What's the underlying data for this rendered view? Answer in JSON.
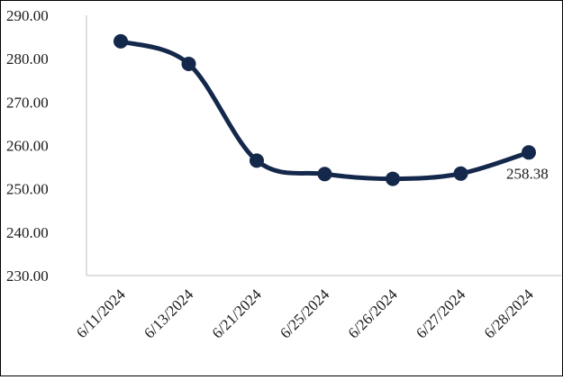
{
  "chart_data": {
    "type": "line",
    "title": "",
    "xlabel": "",
    "ylabel": "",
    "categories": [
      "6/11/2024",
      "6/13/2024",
      "6/21/2024",
      "6/25/2024",
      "6/26/2024",
      "6/27/2024",
      "6/28/2024"
    ],
    "series": [
      {
        "values": [
          284.0,
          278.8,
          256.5,
          253.4,
          252.3,
          253.5,
          258.38
        ],
        "color": "#14284b"
      }
    ],
    "ylim": [
      230,
      290
    ],
    "yticks": [
      290,
      280,
      270,
      260,
      250,
      240,
      230
    ],
    "ytick_labels": [
      "290.00",
      "280.00",
      "270.00",
      "260.00",
      "250.00",
      "240.00",
      "230.00"
    ],
    "data_labels": [
      {
        "index": 6,
        "text": "258.38"
      }
    ],
    "smooth": true,
    "grid": false,
    "legend": "none"
  }
}
